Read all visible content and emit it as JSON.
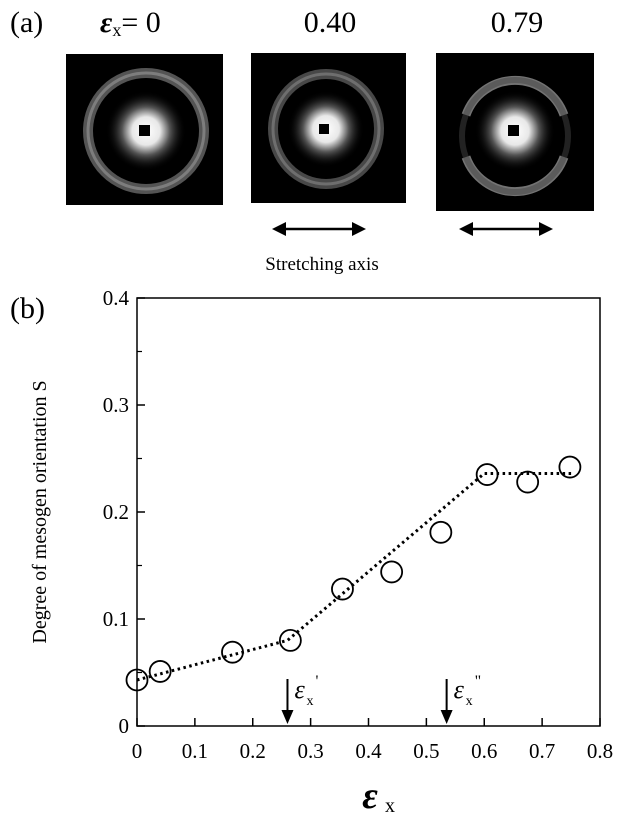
{
  "panel_a": {
    "label": "(a)",
    "strain_symbol": "ε",
    "strain_sub": "x",
    "strain_first": "= 0",
    "strain_values": [
      "0.40",
      "0.79"
    ],
    "arrow_caption": "Stretching axis"
  },
  "chart_data": {
    "type": "scatter",
    "panel_label": "(b)",
    "ylabel": "Degree of mesogen orientation  S",
    "xlabel_symbol": "ε",
    "xlabel_sub": "x",
    "xlim": [
      0,
      0.8
    ],
    "ylim": [
      0,
      0.4
    ],
    "xticks": [
      "0",
      "0.1",
      "0.2",
      "0.3",
      "0.4",
      "0.5",
      "0.6",
      "0.7",
      "0.8"
    ],
    "yticks": [
      "0",
      "0.1",
      "0.2",
      "0.3",
      "0.4"
    ],
    "points": [
      {
        "x": 0.0,
        "y": 0.043
      },
      {
        "x": 0.04,
        "y": 0.051
      },
      {
        "x": 0.165,
        "y": 0.069
      },
      {
        "x": 0.265,
        "y": 0.08
      },
      {
        "x": 0.355,
        "y": 0.128
      },
      {
        "x": 0.44,
        "y": 0.144
      },
      {
        "x": 0.525,
        "y": 0.181
      },
      {
        "x": 0.605,
        "y": 0.235
      },
      {
        "x": 0.675,
        "y": 0.228
      },
      {
        "x": 0.748,
        "y": 0.242
      }
    ],
    "fit_line": {
      "x": [
        0.0,
        0.26,
        0.6,
        0.75
      ],
      "y": [
        0.043,
        0.08,
        0.236,
        0.236
      ]
    },
    "annotations": [
      {
        "x": 0.26,
        "symbol": "ε",
        "sub": "x",
        "mark": "'"
      },
      {
        "x": 0.535,
        "symbol": "ε",
        "sub": "x",
        "mark": "\""
      }
    ]
  }
}
